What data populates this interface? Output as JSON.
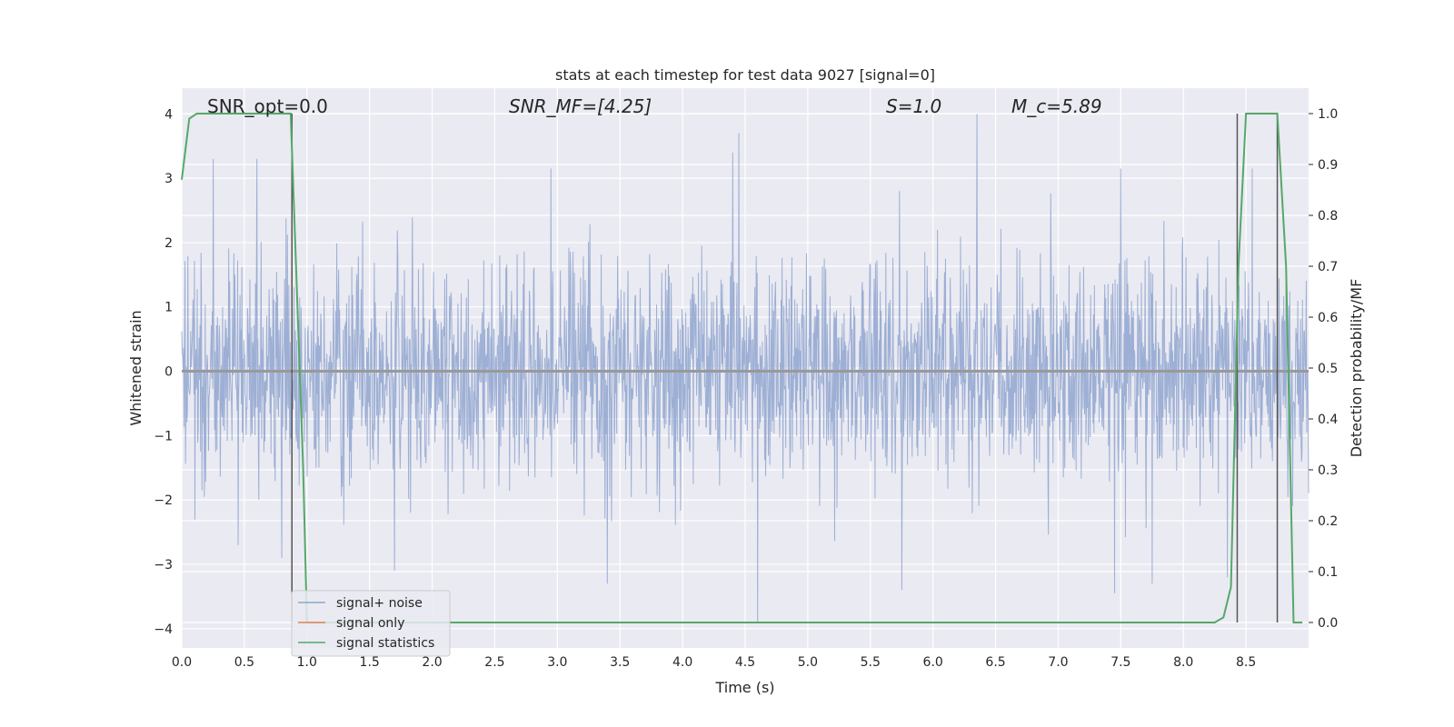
{
  "chart_data": {
    "type": "line",
    "title": "stats at each timestep for test data 9027 [signal=0]",
    "xlabel": "Time (s)",
    "ylabel": "Whitened strain",
    "ylabel_right": "Detection probability/MF",
    "xlim": [
      0.0,
      9.0
    ],
    "ylim": [
      -4.3,
      4.4
    ],
    "ylim_right": [
      -0.05,
      1.05
    ],
    "xticks": [
      "0.0",
      "0.5",
      "1.0",
      "1.5",
      "2.0",
      "2.5",
      "3.0",
      "3.5",
      "4.0",
      "4.5",
      "5.0",
      "5.5",
      "6.0",
      "6.5",
      "7.0",
      "7.5",
      "8.0",
      "8.5"
    ],
    "yticks": [
      "4",
      "3",
      "2",
      "1",
      "0",
      "−1",
      "−2",
      "−3",
      "−4"
    ],
    "yticks_right": [
      "1.0",
      "0.9",
      "0.8",
      "0.7",
      "0.6",
      "0.5",
      "0.4",
      "0.3",
      "0.2",
      "0.1",
      "0.0"
    ],
    "grid": true,
    "annotations": [
      {
        "text": "SNR_opt=0.0",
        "x": 0.2
      },
      {
        "text": "SNR_MF=[4.25]",
        "x": 2.6
      },
      {
        "text": "S=1.0",
        "x": 5.6
      },
      {
        "text": "M_c=5.89",
        "x": 6.6
      }
    ],
    "legend": {
      "placement": "lower-left",
      "entries": [
        "signal+ noise",
        "signal only",
        "signal statistics"
      ]
    },
    "series": [
      {
        "name": "signal+ noise",
        "kind": "noise",
        "color": "#8fa4cf",
        "seed": 9027,
        "n_points": 2400,
        "std": 0.85,
        "peaks_high": [
          [
            0.25,
            3.3
          ],
          [
            0.6,
            3.3
          ],
          [
            2.95,
            3.15
          ],
          [
            4.4,
            3.4
          ],
          [
            4.45,
            3.7
          ],
          [
            6.35,
            4.0
          ],
          [
            7.5,
            3.15
          ],
          [
            8.55,
            3.15
          ]
        ],
        "peaks_low": [
          [
            0.45,
            -2.7
          ],
          [
            0.8,
            -2.9
          ],
          [
            1.7,
            -3.1
          ],
          [
            3.4,
            -3.3
          ],
          [
            4.6,
            -3.9
          ],
          [
            5.75,
            -3.4
          ],
          [
            7.45,
            -3.45
          ],
          [
            7.75,
            -3.3
          ],
          [
            8.35,
            -3.2
          ]
        ]
      },
      {
        "name": "signal only",
        "kind": "flat",
        "color": "#dd8452",
        "values": [
          0.0
        ]
      },
      {
        "name": "signal statistics",
        "kind": "line",
        "color": "#55a868",
        "axis": "right",
        "x": [
          0.0,
          0.06,
          0.12,
          0.2,
          0.5,
          0.8,
          0.87,
          0.97,
          1.0,
          8.25,
          8.32,
          8.38,
          8.44,
          8.5,
          8.6,
          8.75,
          8.82,
          8.88,
          8.95
        ],
        "values": [
          0.87,
          0.99,
          1.0,
          1.0,
          1.0,
          1.0,
          1.0,
          0.3,
          0.0,
          0.0,
          0.01,
          0.07,
          0.7,
          1.0,
          1.0,
          1.0,
          0.7,
          0.0,
          0.0
        ]
      }
    ],
    "vlines": [
      {
        "x": 0.88,
        "color": "#555555"
      },
      {
        "x": 8.43,
        "color": "#555555"
      },
      {
        "x": 8.75,
        "color": "#555555"
      }
    ]
  }
}
